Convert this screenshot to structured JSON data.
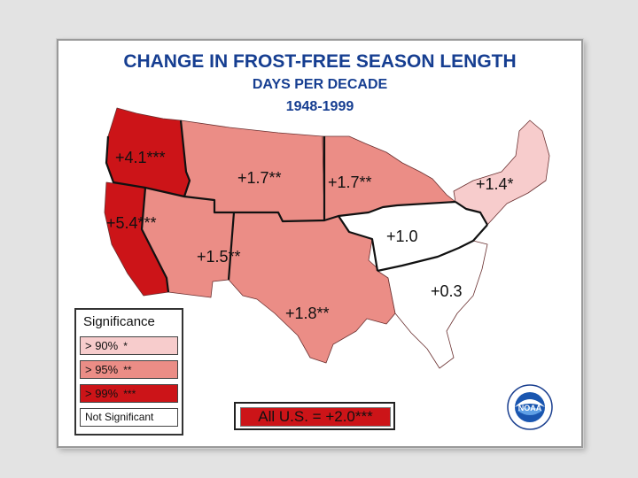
{
  "title": {
    "line1": "CHANGE IN FROST-FREE SEASON LENGTH",
    "line2": "DAYS PER DECADE",
    "line3": "1948-1999"
  },
  "regions": [
    {
      "id": "northwest",
      "label": "+4.1***",
      "significance": "> 99%"
    },
    {
      "id": "california",
      "label": "+5.4***",
      "significance": "> 99%"
    },
    {
      "id": "northern-plains",
      "label": "+1.7**",
      "significance": "> 95%"
    },
    {
      "id": "upper-midwest",
      "label": "+1.7**",
      "significance": "> 95%"
    },
    {
      "id": "northeast",
      "label": "+1.4*",
      "significance": "> 90%"
    },
    {
      "id": "southwest",
      "label": "+1.5**",
      "significance": "> 95%"
    },
    {
      "id": "ohio-valley",
      "label": "+1.0",
      "significance": "Not Significant"
    },
    {
      "id": "south-central",
      "label": "+1.8**",
      "significance": "> 95%"
    },
    {
      "id": "southeast",
      "label": "+0.3",
      "significance": "Not Significant"
    }
  ],
  "legend": {
    "title": "Significance",
    "items": [
      {
        "label": "> 90%",
        "stars": "*",
        "color": "#f7cccc"
      },
      {
        "label": "> 95%",
        "stars": "**",
        "color": "#eb8d86"
      },
      {
        "label": "> 99%",
        "stars": "***",
        "color": "#cc1418"
      },
      {
        "label": "Not Significant",
        "stars": "",
        "color": "#ffffff"
      }
    ]
  },
  "summary": {
    "label": "All U.S. = +2.0***"
  },
  "colors": {
    "title": "#163e91",
    "sig99": "#cc1418",
    "sig95": "#eb8d86",
    "sig90": "#f7cccc",
    "not_significant": "#ffffff"
  },
  "logo": {
    "name": "noaa-logo",
    "text": "NOAA"
  }
}
